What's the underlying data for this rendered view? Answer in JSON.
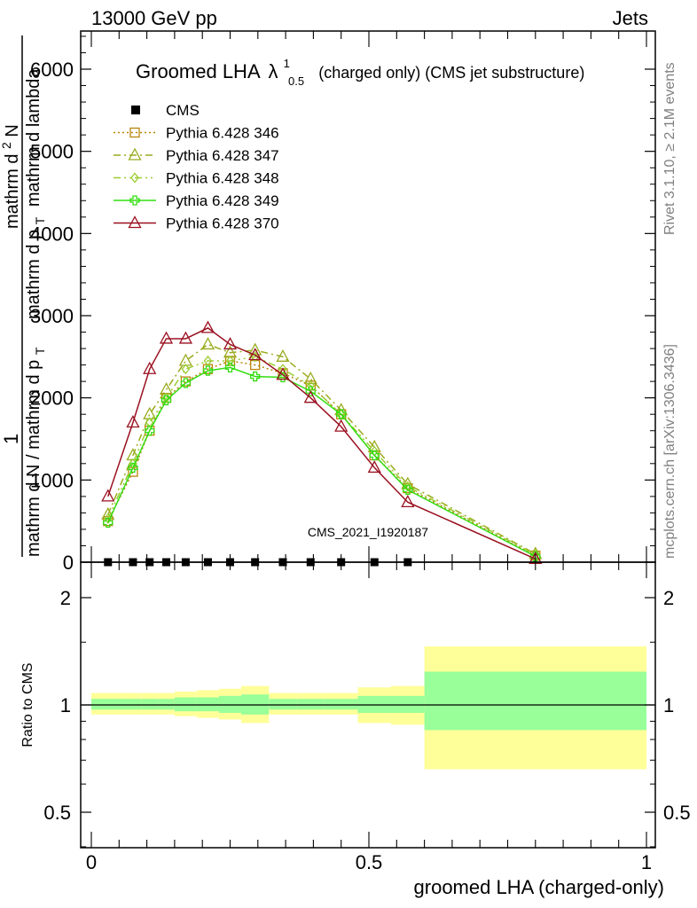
{
  "header": {
    "energy_label": "13000 GeV pp",
    "process_label": "Jets"
  },
  "side_labels": {
    "rivet": "Rivet 3.1.10, ≥ 2.1M events",
    "mcplots": "mcplots.cern.ch [arXiv:1306.3436]"
  },
  "watermark": "CMS_2021_I1920187",
  "chart_data": [
    {
      "type": "line",
      "title": "Groomed LHA",
      "title_symbol": "λ",
      "title_sup": "1",
      "title_sub": "0.5",
      "title_suffix": "(charged only) (CMS jet substructure)",
      "ylabel_num": "1",
      "ylabel_den": "mathrm d N / mathrm d p",
      "ylabel_den_sub": "T",
      "ylabel_den2": "mathrm d p",
      "ylabel_den2_sub": "T",
      "ylabel_rest": "mathrm d lambda",
      "ylabel_top": "mathrm d",
      "ylabel_top_sup": "2",
      "ylabel_top_rest": "N",
      "xlim": [
        0,
        1
      ],
      "ylim": [
        0,
        6500
      ],
      "yticks": [
        0,
        1000,
        2000,
        3000,
        4000,
        5000,
        6000
      ],
      "ytick_labels": [
        "0",
        "1000",
        "2000",
        "3000",
        "4000",
        "5000",
        "6000"
      ],
      "legend_position": "top-left",
      "cms": {
        "name": "CMS",
        "x": [
          0.03,
          0.075,
          0.105,
          0.135,
          0.17,
          0.21,
          0.25,
          0.295,
          0.345,
          0.395,
          0.45,
          0.51,
          0.57
        ],
        "y": [
          0,
          0,
          0,
          0,
          0,
          0,
          0,
          0,
          0,
          0,
          0,
          0,
          0
        ]
      },
      "x": [
        0.03,
        0.075,
        0.105,
        0.135,
        0.17,
        0.21,
        0.25,
        0.295,
        0.345,
        0.395,
        0.45,
        0.51,
        0.57,
        0.8
      ],
      "series": [
        {
          "name": "Pythia 6.428 346",
          "color": "#b8860b",
          "marker": "square-open",
          "dash": "2,3",
          "values": [
            500,
            1100,
            1600,
            2000,
            2200,
            2350,
            2450,
            2400,
            2300,
            2150,
            1800,
            1300,
            900,
            80
          ]
        },
        {
          "name": "Pythia 6.428 347",
          "color": "#9aab1e",
          "marker": "triangle-open",
          "dash": "8,4,2,4",
          "values": [
            580,
            1300,
            1800,
            2100,
            2450,
            2650,
            2550,
            2580,
            2500,
            2230,
            1850,
            1400,
            950,
            100
          ]
        },
        {
          "name": "Pythia 6.428 348",
          "color": "#9acd32",
          "marker": "diamond-open",
          "dash": "8,4,2,4,2,4",
          "values": [
            530,
            1200,
            1700,
            2000,
            2350,
            2450,
            2450,
            2500,
            2350,
            2150,
            1800,
            1350,
            920,
            90
          ]
        },
        {
          "name": "Pythia 6.428 349",
          "color": "#33dd11",
          "marker": "cross-open",
          "dash": "",
          "values": [
            480,
            1150,
            1600,
            1970,
            2180,
            2330,
            2370,
            2260,
            2250,
            2080,
            1800,
            1300,
            880,
            70
          ]
        },
        {
          "name": "Pythia 6.428 370",
          "color": "#9a1020",
          "marker": "triangle-open",
          "dash": "",
          "values": [
            800,
            1700,
            2350,
            2720,
            2720,
            2850,
            2650,
            2520,
            2280,
            2000,
            1650,
            1150,
            730,
            40
          ]
        }
      ]
    },
    {
      "type": "area",
      "ylabel": "Ratio to CMS",
      "xlabel": "groomed LHA (charged-only)",
      "xlim": [
        0,
        1
      ],
      "ylim": [
        0.35,
        2.25
      ],
      "yticks": [
        0.5,
        1,
        2
      ],
      "ytick_labels": [
        "0.5",
        "1",
        "2"
      ],
      "xticks": [
        0,
        0.5,
        1
      ],
      "xtick_labels": [
        "0",
        "0.5",
        "1"
      ],
      "reference": 1,
      "bands": {
        "edges": [
          0,
          0.06,
          0.09,
          0.12,
          0.15,
          0.19,
          0.23,
          0.27,
          0.32,
          0.37,
          0.42,
          0.48,
          0.54,
          0.6,
          1.0
        ],
        "stat_lo": [
          0.97,
          0.97,
          0.97,
          0.97,
          0.96,
          0.96,
          0.95,
          0.94,
          0.97,
          0.97,
          0.97,
          0.95,
          0.95,
          0.85
        ],
        "stat_hi": [
          1.04,
          1.04,
          1.04,
          1.04,
          1.05,
          1.05,
          1.06,
          1.07,
          1.04,
          1.04,
          1.04,
          1.06,
          1.06,
          1.24
        ],
        "total_lo": [
          0.94,
          0.94,
          0.94,
          0.94,
          0.93,
          0.92,
          0.91,
          0.89,
          0.94,
          0.94,
          0.94,
          0.89,
          0.88,
          0.66
        ],
        "total_hi": [
          1.08,
          1.08,
          1.08,
          1.08,
          1.09,
          1.1,
          1.11,
          1.13,
          1.08,
          1.08,
          1.08,
          1.12,
          1.13,
          1.46
        ]
      },
      "band_colors": {
        "stat": "#99ff99",
        "total": "#ffff99"
      }
    }
  ]
}
